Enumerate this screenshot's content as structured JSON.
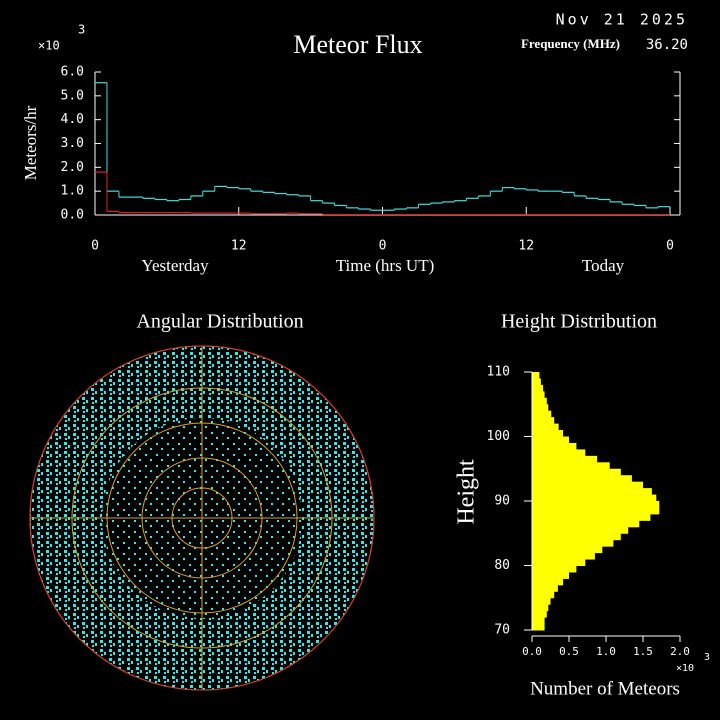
{
  "header": {
    "date": "Nov 21 2025",
    "frequency_label": "Frequency (MHz)",
    "frequency": "36.20"
  },
  "chart_data": [
    {
      "type": "step",
      "title": "Meteor Flux",
      "y_label": "Meteors/hr",
      "y_multiplier": "×10",
      "y_exponent": "3",
      "x_label": "Time (hrs UT)",
      "x_sublabels": [
        "Yesterday",
        "Today"
      ],
      "x": [
        0,
        1,
        2,
        3,
        4,
        5,
        6,
        7,
        8,
        9,
        10,
        11,
        12,
        13,
        14,
        15,
        16,
        17,
        18,
        19,
        20,
        21,
        22,
        23,
        24,
        25,
        26,
        27,
        28,
        29,
        30,
        31,
        32,
        33,
        34,
        35,
        36,
        37,
        38,
        39,
        40,
        41,
        42,
        43,
        44,
        45,
        46,
        47
      ],
      "xlim": [
        0,
        48
      ],
      "xticks": [
        0,
        12,
        {
          "value": 24,
          "label": "0"
        },
        {
          "value": 36,
          "label": "12"
        },
        {
          "value": 48,
          "label": "0"
        }
      ],
      "ylim": [
        0,
        6
      ],
      "yticks": [
        {
          "value": 0,
          "label": "0.0"
        },
        {
          "value": 1,
          "label": "1.0"
        },
        {
          "value": 2,
          "label": "2.0"
        },
        {
          "value": 3,
          "label": "3.0"
        },
        {
          "value": 4,
          "label": "4.0"
        },
        {
          "value": 5,
          "label": "5.0"
        },
        {
          "value": 6,
          "label": "6.0"
        }
      ],
      "series": [
        {
          "color": "#40e0e0",
          "values": [
            5.55,
            1.0,
            0.75,
            0.75,
            0.7,
            0.65,
            0.6,
            0.65,
            0.8,
            1.0,
            1.2,
            1.15,
            1.1,
            1.0,
            0.95,
            0.9,
            0.85,
            0.8,
            0.6,
            0.5,
            0.4,
            0.3,
            0.25,
            0.2,
            0.2,
            0.25,
            0.3,
            0.45,
            0.5,
            0.55,
            0.6,
            0.7,
            0.8,
            1.0,
            1.15,
            1.1,
            1.05,
            1.0,
            1.0,
            0.95,
            0.8,
            0.7,
            0.65,
            0.55,
            0.45,
            0.4,
            0.3,
            0.35
          ]
        },
        {
          "color": "#e02020",
          "values": [
            1.8,
            0.15,
            0.1,
            0.1,
            0.1,
            0.1,
            0.1,
            0.1,
            0.08,
            0.08,
            0.08,
            0.08,
            0.08,
            0.05,
            0.05,
            0.05,
            0.08,
            0.05,
            0.05,
            0.02,
            0.02,
            0.02,
            0.02,
            0.02,
            0.02,
            0.02,
            0.02,
            0.02,
            0.02,
            0.02,
            0.02,
            0.02,
            0.02,
            0.02,
            0.02,
            0.02,
            0.02,
            0.02,
            0.02,
            0.02,
            0.02,
            0.02,
            0.02,
            0.02,
            0.02,
            0.02,
            0.02,
            0.02
          ]
        }
      ]
    },
    {
      "type": "polar",
      "title": "Angular Distribution"
    },
    {
      "type": "hbar-histogram",
      "title": "Height Distribution",
      "y_label": "Height",
      "x_label": "Number of Meteors",
      "x_multiplier": "×10",
      "x_exponent": "3",
      "color": "#ffff00",
      "bins": [
        70,
        71,
        72,
        73,
        74,
        75,
        76,
        77,
        78,
        79,
        80,
        81,
        82,
        83,
        84,
        85,
        86,
        87,
        88,
        89,
        90,
        91,
        92,
        93,
        94,
        95,
        96,
        97,
        98,
        99,
        100,
        101,
        102,
        103,
        104,
        105,
        106,
        107,
        108,
        109,
        110
      ],
      "values": [
        0.17,
        0.17,
        0.2,
        0.22,
        0.25,
        0.3,
        0.35,
        0.42,
        0.5,
        0.6,
        0.72,
        0.85,
        0.95,
        1.1,
        1.2,
        1.3,
        1.45,
        1.6,
        1.72,
        1.72,
        1.68,
        1.62,
        1.5,
        1.35,
        1.2,
        1.05,
        0.88,
        0.72,
        0.6,
        0.5,
        0.42,
        0.36,
        0.3,
        0.26,
        0.22,
        0.2,
        0.17,
        0.15,
        0.12,
        0.1
      ],
      "ylim": [
        70,
        110
      ],
      "yticks": [
        70,
        80,
        90,
        100,
        110
      ],
      "xlim": [
        0,
        2
      ],
      "xticks": [
        {
          "value": 0,
          "label": "0.0"
        },
        {
          "value": 0.5,
          "label": "0.5"
        },
        {
          "value": 1,
          "label": "1.0"
        },
        {
          "value": 1.5,
          "label": "1.5"
        },
        {
          "value": 2,
          "label": "2.0"
        }
      ]
    }
  ]
}
